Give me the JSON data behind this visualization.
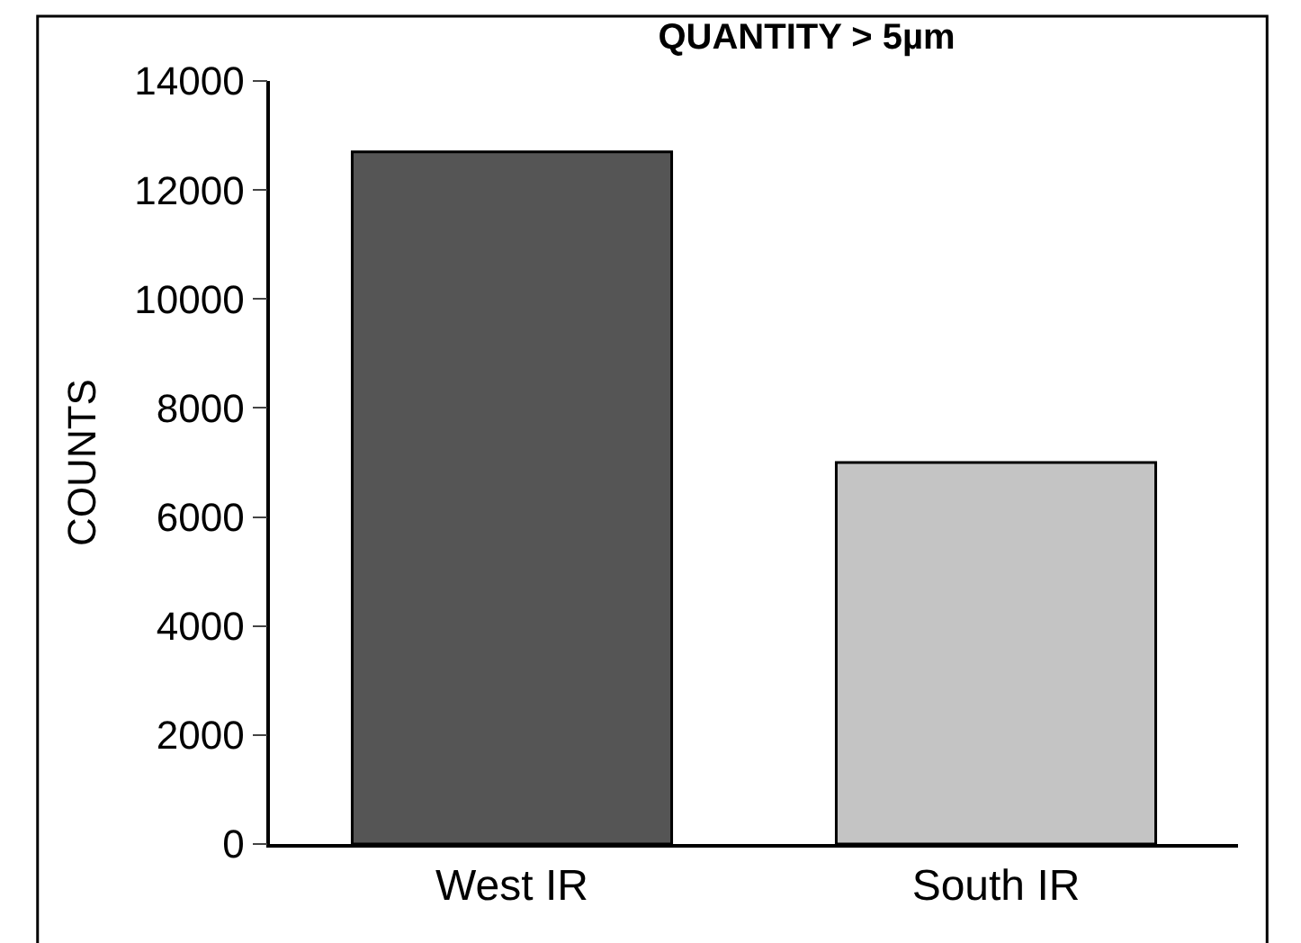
{
  "chart_data": {
    "type": "bar",
    "title": "QUANTITY > 5µm",
    "ylabel": "COUNTS",
    "categories": [
      "West IR",
      "South IR"
    ],
    "values": [
      12700,
      7000
    ],
    "colors": [
      "#555555",
      "#c4c4c4"
    ],
    "ylim": [
      0,
      14000
    ],
    "yticks": [
      0,
      2000,
      4000,
      6000,
      8000,
      10000,
      12000,
      14000
    ]
  }
}
